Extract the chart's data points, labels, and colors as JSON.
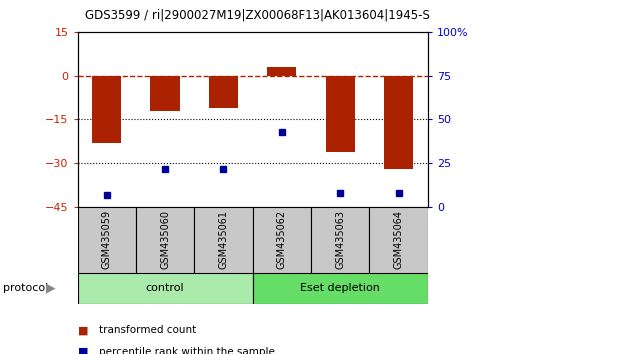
{
  "title": "GDS3599 / ri|2900027M19|ZX00068F13|AK013604|1945-S",
  "samples": [
    "GSM435059",
    "GSM435060",
    "GSM435061",
    "GSM435062",
    "GSM435063",
    "GSM435064"
  ],
  "transformed_count": [
    -23,
    -12,
    -11,
    3,
    -26,
    -32
  ],
  "percentile_rank": [
    7,
    22,
    22,
    43,
    8,
    8
  ],
  "left_ylim": [
    -45,
    15
  ],
  "left_yticks": [
    15,
    0,
    -15,
    -30,
    -45
  ],
  "right_ylim": [
    0,
    100
  ],
  "right_yticks": [
    100,
    75,
    50,
    25,
    0
  ],
  "right_yticklabels": [
    "100%",
    "75",
    "50",
    "25",
    "0"
  ],
  "bar_color": "#AA2200",
  "dot_color": "#000099",
  "groups": [
    {
      "label": "control",
      "count": 3,
      "color": "#99EE99"
    },
    {
      "label": "Eset depletion",
      "count": 3,
      "color": "#66DD66"
    }
  ],
  "protocol_label": "protocol",
  "legend_bar_label": "transformed count",
  "legend_dot_label": "percentile rank within the sample",
  "sample_bg": "#C8C8C8",
  "left_tick_color": "#CC2200",
  "right_tick_color": "#0000CC",
  "bar_width": 0.5
}
